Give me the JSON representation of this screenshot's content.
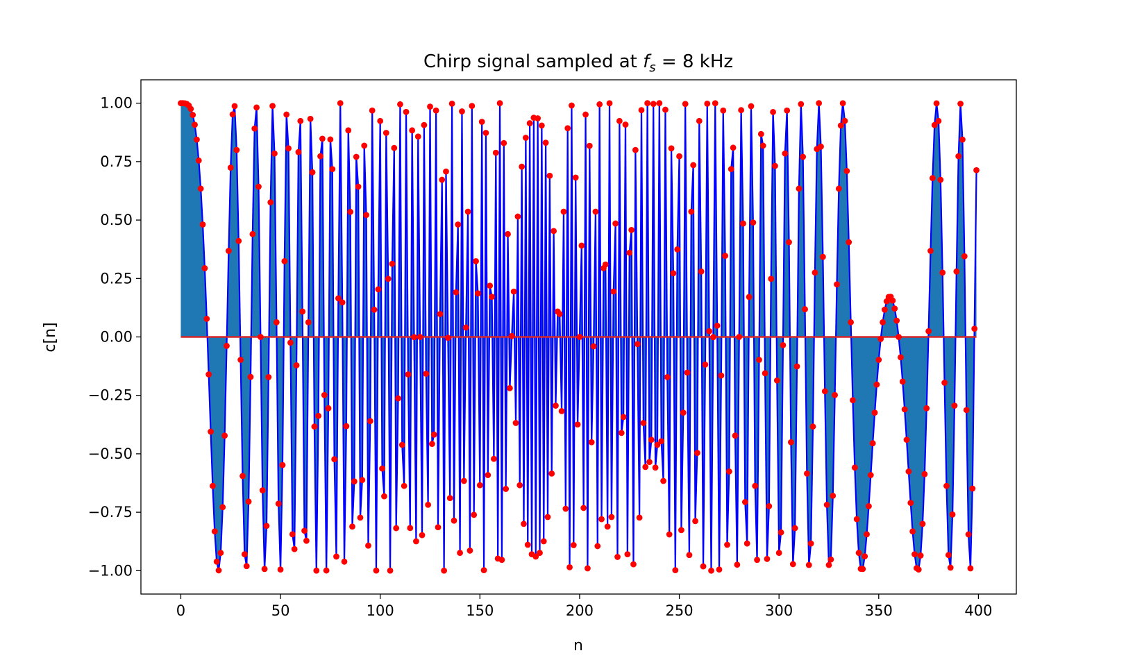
{
  "chart_data": {
    "type": "stem",
    "title_prefix": "Chirp signal sampled at ",
    "title_symbol": "f",
    "title_subscript": "s",
    "title_suffix": " =  8 kHz",
    "xlabel": "n",
    "ylabel": "c[n]",
    "xlim": [
      -20,
      419
    ],
    "ylim": [
      -1.1,
      1.1
    ],
    "x_ticks": [
      0,
      50,
      100,
      150,
      200,
      250,
      300,
      350,
      400
    ],
    "x_tick_labels": [
      "0",
      "50",
      "100",
      "150",
      "200",
      "250",
      "300",
      "350",
      "400"
    ],
    "y_ticks": [
      1.0,
      0.75,
      0.5,
      0.25,
      0.0,
      -0.25,
      -0.5,
      -0.75,
      -1.0
    ],
    "y_tick_labels": [
      "1.00",
      "0.75",
      "0.50",
      "0.25",
      "0.00",
      "−0.25",
      "−0.50",
      "−0.75",
      "−1.00"
    ],
    "n_samples": 400,
    "signal": "c[n] = cos(π · (9/8)·n² / 400), n = 0 … 399",
    "grid": false,
    "colors": {
      "line": "#0000ff",
      "fill": "#1f77b4",
      "markers": "#ff0000",
      "baseline": "#d62728"
    }
  }
}
